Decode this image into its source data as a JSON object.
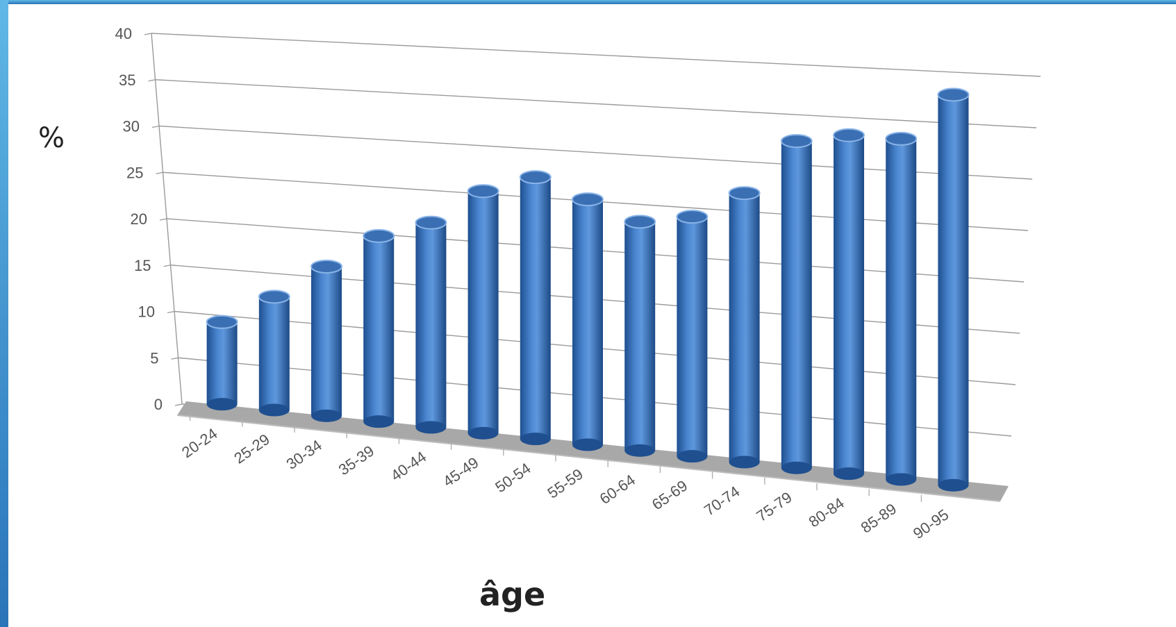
{
  "chart_data": {
    "type": "bar",
    "categories": [
      "20-24",
      "25-29",
      "30-34",
      "35-39",
      "40-44",
      "45-49",
      "50-54",
      "55-59",
      "60-64",
      "65-69",
      "70-74",
      "75-79",
      "80-84",
      "85-89",
      "90-95"
    ],
    "values": [
      9.5,
      13,
      17,
      21,
      23,
      27,
      29,
      27,
      25,
      26,
      29,
      35,
      36,
      36,
      41
    ],
    "ylabel": "%",
    "xlabel": "âge",
    "ylim": [
      0,
      40
    ],
    "yticks": [
      "0",
      "5",
      "10",
      "15",
      "20",
      "25",
      "30",
      "35",
      "40"
    ],
    "grid": true,
    "style": "3d-cylinder",
    "color": "#3f79c4",
    "frame_color": "#4ba3d6"
  }
}
